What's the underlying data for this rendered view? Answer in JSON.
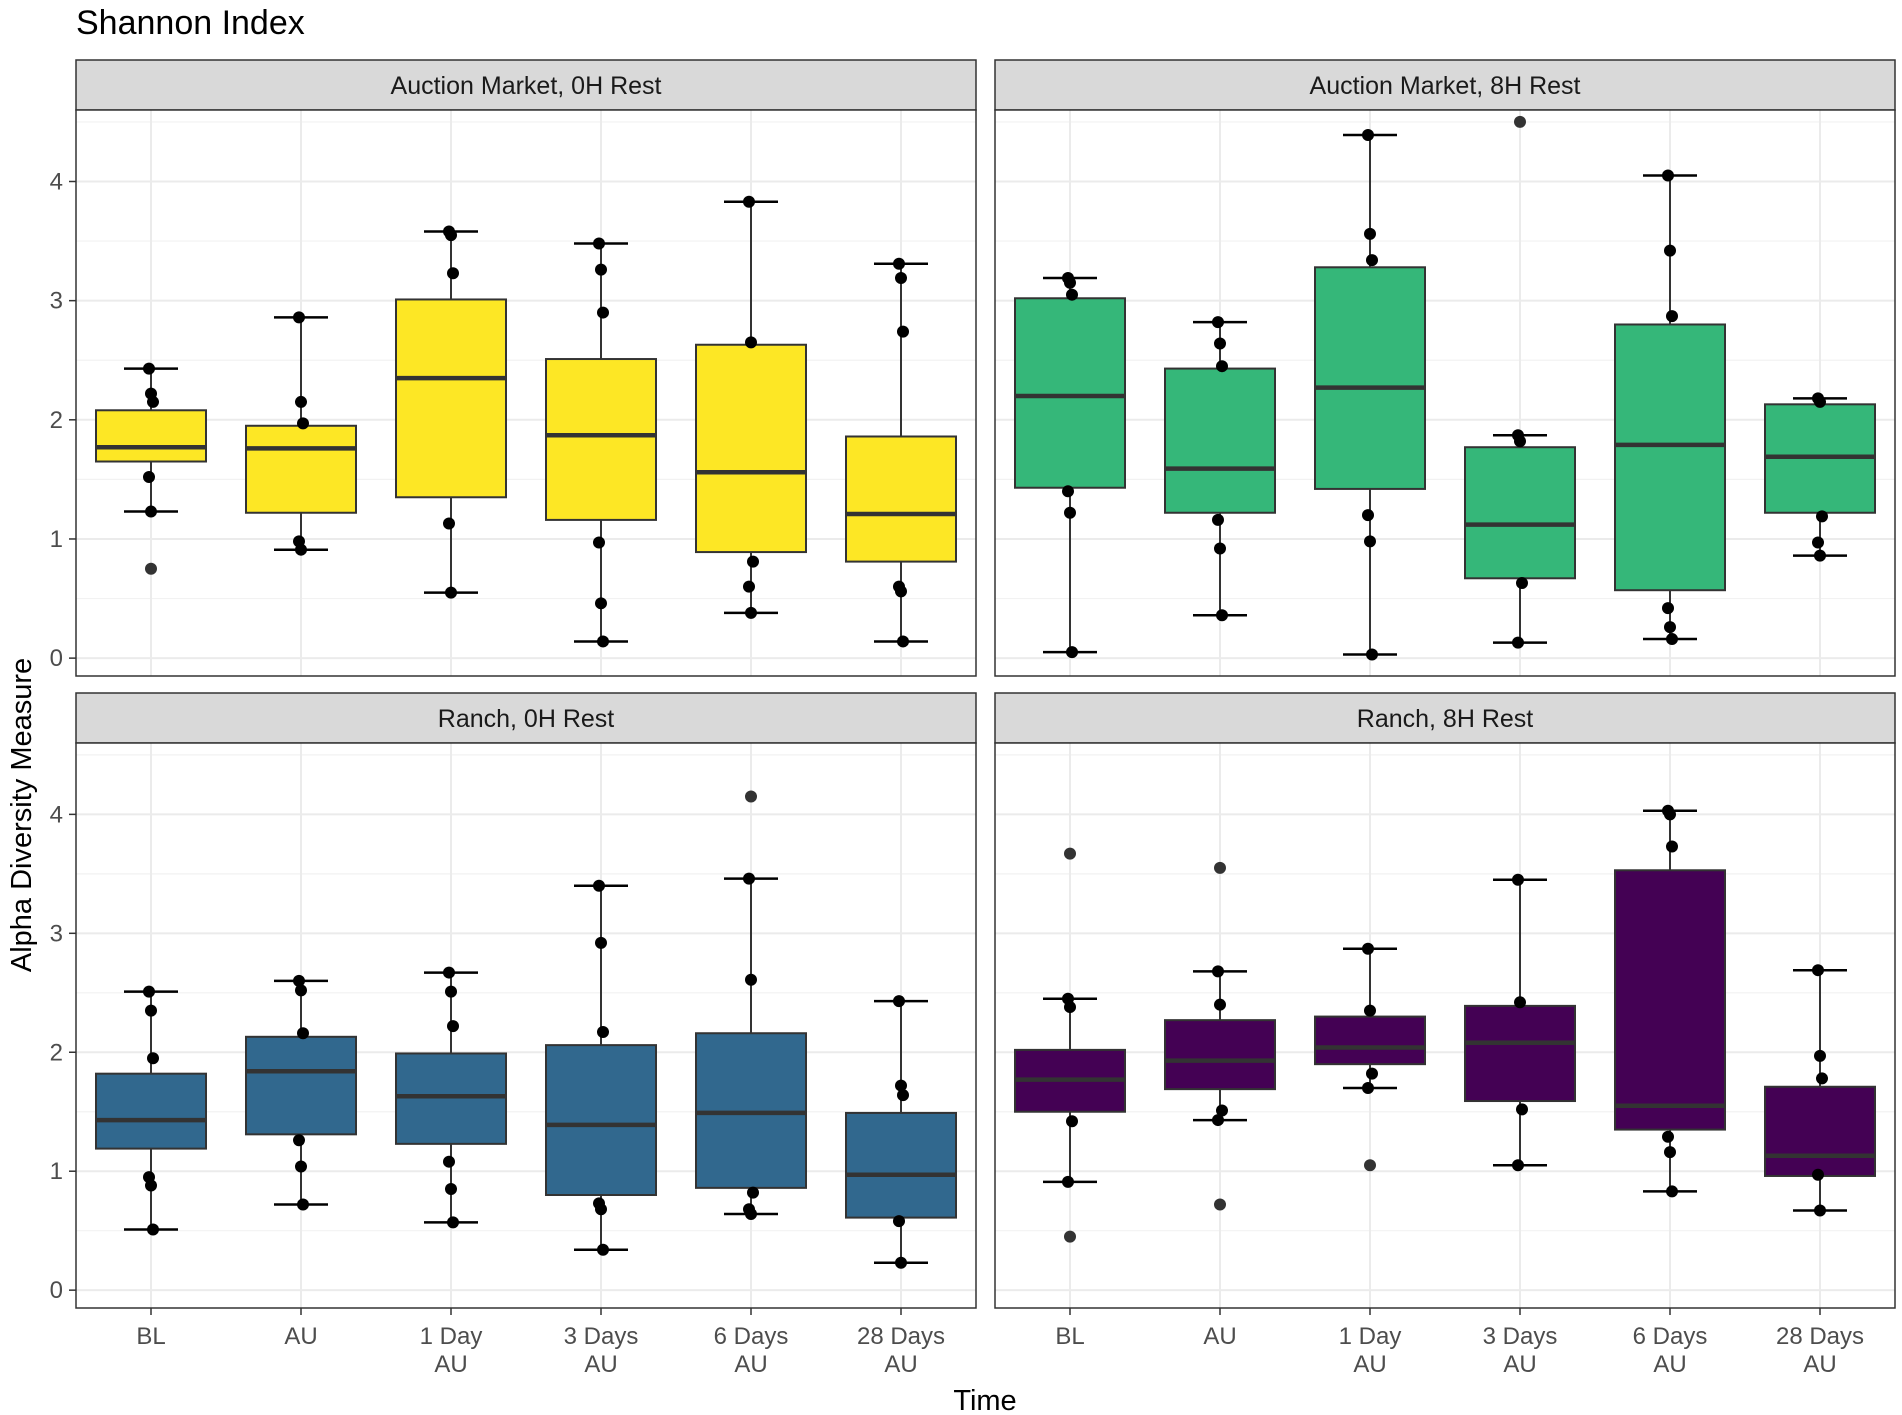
{
  "chart_data": {
    "type": "box",
    "title": "Shannon Index",
    "xlabel": "Time",
    "ylabel": "Alpha Diversity Measure",
    "ylim": [
      -0.15,
      4.6
    ],
    "yticks": [
      0,
      1,
      2,
      3,
      4
    ],
    "categories": [
      {
        "line1": "BL",
        "line2": ""
      },
      {
        "line1": "AU",
        "line2": ""
      },
      {
        "line1": "1 Day",
        "line2": "AU"
      },
      {
        "line1": "3 Days",
        "line2": "AU"
      },
      {
        "line1": "6 Days",
        "line2": "AU"
      },
      {
        "line1": "28 Days",
        "line2": "AU"
      }
    ],
    "grid": true,
    "facets": [
      {
        "label": "Auction Market, 0H Rest",
        "color": "#FDE725",
        "boxes": [
          {
            "q1": 1.65,
            "median": 1.77,
            "q3": 2.08,
            "whisker_low": 1.23,
            "whisker_high": 2.43,
            "outliers": [
              0.75
            ],
            "points": [
              2.43,
              2.22,
              2.15,
              1.52,
              1.23
            ]
          },
          {
            "q1": 1.22,
            "median": 1.76,
            "q3": 1.95,
            "whisker_low": 0.91,
            "whisker_high": 2.86,
            "outliers": [],
            "points": [
              2.86,
              2.15,
              1.97,
              0.98,
              0.91
            ]
          },
          {
            "q1": 1.35,
            "median": 2.35,
            "q3": 3.01,
            "whisker_low": 0.55,
            "whisker_high": 3.58,
            "outliers": [],
            "points": [
              3.58,
              3.55,
              3.23,
              1.13,
              0.55
            ]
          },
          {
            "q1": 1.16,
            "median": 1.87,
            "q3": 2.51,
            "whisker_low": 0.14,
            "whisker_high": 3.48,
            "outliers": [],
            "points": [
              3.48,
              3.26,
              2.9,
              0.97,
              0.46,
              0.14
            ]
          },
          {
            "q1": 0.89,
            "median": 1.56,
            "q3": 2.63,
            "whisker_low": 0.38,
            "whisker_high": 3.83,
            "outliers": [],
            "points": [
              3.83,
              2.65,
              0.81,
              0.6,
              0.38
            ]
          },
          {
            "q1": 0.81,
            "median": 1.21,
            "q3": 1.86,
            "whisker_low": 0.14,
            "whisker_high": 3.31,
            "outliers": [],
            "points": [
              3.31,
              3.19,
              2.74,
              0.6,
              0.56,
              0.14
            ]
          }
        ]
      },
      {
        "label": "Auction Market, 8H Rest",
        "color": "#35B779",
        "boxes": [
          {
            "q1": 1.43,
            "median": 2.2,
            "q3": 3.02,
            "whisker_low": 0.05,
            "whisker_high": 3.19,
            "outliers": [],
            "points": [
              3.19,
              3.15,
              3.05,
              1.4,
              1.22,
              0.05
            ]
          },
          {
            "q1": 1.22,
            "median": 1.59,
            "q3": 2.43,
            "whisker_low": 0.36,
            "whisker_high": 2.82,
            "outliers": [],
            "points": [
              2.82,
              2.64,
              2.45,
              1.16,
              0.92,
              0.36
            ]
          },
          {
            "q1": 1.42,
            "median": 2.27,
            "q3": 3.28,
            "whisker_low": 0.03,
            "whisker_high": 4.39,
            "outliers": [],
            "points": [
              4.39,
              3.56,
              3.34,
              1.2,
              0.98,
              0.03
            ]
          },
          {
            "q1": 0.67,
            "median": 1.12,
            "q3": 1.77,
            "whisker_low": 0.13,
            "whisker_high": 1.87,
            "outliers": [
              4.5
            ],
            "points": [
              1.87,
              1.82,
              0.63,
              0.13
            ]
          },
          {
            "q1": 0.57,
            "median": 1.79,
            "q3": 2.8,
            "whisker_low": 0.16,
            "whisker_high": 4.05,
            "outliers": [],
            "points": [
              4.05,
              3.42,
              2.87,
              0.42,
              0.26,
              0.16
            ]
          },
          {
            "q1": 1.22,
            "median": 1.69,
            "q3": 2.13,
            "whisker_low": 0.86,
            "whisker_high": 2.18,
            "outliers": [],
            "points": [
              2.18,
              2.15,
              1.19,
              0.97,
              0.86
            ]
          }
        ]
      },
      {
        "label": "Ranch, 0H Rest",
        "color": "#31688E",
        "boxes": [
          {
            "q1": 1.19,
            "median": 1.43,
            "q3": 1.82,
            "whisker_low": 0.51,
            "whisker_high": 2.51,
            "outliers": [],
            "points": [
              2.51,
              2.35,
              1.95,
              0.95,
              0.88,
              0.51
            ]
          },
          {
            "q1": 1.31,
            "median": 1.84,
            "q3": 2.13,
            "whisker_low": 0.72,
            "whisker_high": 2.6,
            "outliers": [],
            "points": [
              2.6,
              2.52,
              2.16,
              1.26,
              1.04,
              0.72
            ]
          },
          {
            "q1": 1.23,
            "median": 1.63,
            "q3": 1.99,
            "whisker_low": 0.57,
            "whisker_high": 2.67,
            "outliers": [],
            "points": [
              2.67,
              2.51,
              2.22,
              1.08,
              0.85,
              0.57
            ]
          },
          {
            "q1": 0.8,
            "median": 1.39,
            "q3": 2.06,
            "whisker_low": 0.34,
            "whisker_high": 3.4,
            "outliers": [],
            "points": [
              3.4,
              2.92,
              2.17,
              0.73,
              0.68,
              0.34
            ]
          },
          {
            "q1": 0.86,
            "median": 1.49,
            "q3": 2.16,
            "whisker_low": 0.64,
            "whisker_high": 3.46,
            "outliers": [
              4.15
            ],
            "points": [
              3.46,
              2.61,
              0.82,
              0.68,
              0.64
            ]
          },
          {
            "q1": 0.61,
            "median": 0.97,
            "q3": 1.49,
            "whisker_low": 0.23,
            "whisker_high": 2.43,
            "outliers": [],
            "points": [
              2.43,
              1.72,
              1.64,
              0.58,
              0.23
            ]
          }
        ]
      },
      {
        "label": "Ranch, 8H Rest",
        "color": "#440154",
        "boxes": [
          {
            "q1": 1.5,
            "median": 1.77,
            "q3": 2.02,
            "whisker_low": 0.91,
            "whisker_high": 2.45,
            "outliers": [
              3.67,
              0.45
            ],
            "points": [
              2.45,
              2.38,
              1.42,
              0.91
            ]
          },
          {
            "q1": 1.69,
            "median": 1.93,
            "q3": 2.27,
            "whisker_low": 1.43,
            "whisker_high": 2.68,
            "outliers": [
              3.55,
              0.72
            ],
            "points": [
              2.68,
              2.4,
              1.51,
              1.43
            ]
          },
          {
            "q1": 1.9,
            "median": 2.04,
            "q3": 2.3,
            "whisker_low": 1.7,
            "whisker_high": 2.87,
            "outliers": [
              1.05
            ],
            "points": [
              2.87,
              2.35,
              1.82,
              1.7
            ]
          },
          {
            "q1": 1.59,
            "median": 2.08,
            "q3": 2.39,
            "whisker_low": 1.05,
            "whisker_high": 3.45,
            "outliers": [],
            "points": [
              3.45,
              2.42,
              1.52,
              1.05
            ]
          },
          {
            "q1": 1.35,
            "median": 1.55,
            "q3": 3.53,
            "whisker_low": 0.83,
            "whisker_high": 4.03,
            "outliers": [],
            "points": [
              4.03,
              4.0,
              3.73,
              1.29,
              1.16,
              0.83
            ]
          },
          {
            "q1": 0.96,
            "median": 1.13,
            "q3": 1.71,
            "whisker_low": 0.67,
            "whisker_high": 2.69,
            "outliers": [],
            "points": [
              2.69,
              1.97,
              1.78,
              0.97,
              0.67
            ]
          }
        ]
      }
    ]
  }
}
